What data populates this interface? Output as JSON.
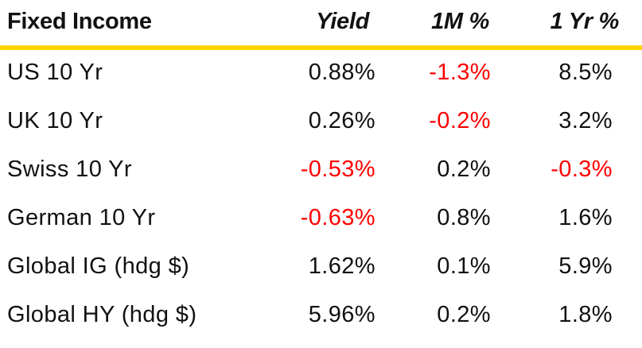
{
  "header": {
    "label": "Fixed Income",
    "col_yield": "Yield",
    "col_1m": "1M %",
    "col_1yr": "1 Yr %"
  },
  "colors": {
    "rule": "#FFD500",
    "negative": "#FF0000",
    "text": "#111111"
  },
  "rows": [
    {
      "name": "US 10 Yr",
      "yield": "0.88%",
      "m1": "-1.3%",
      "yr1": "8.5%"
    },
    {
      "name": "UK 10 Yr",
      "yield": "0.26%",
      "m1": "-0.2%",
      "yr1": "3.2%"
    },
    {
      "name": "Swiss 10 Yr",
      "yield": "-0.53%",
      "m1": "0.2%",
      "yr1": "-0.3%"
    },
    {
      "name": "German 10 Yr",
      "yield": "-0.63%",
      "m1": "0.8%",
      "yr1": "1.6%"
    },
    {
      "name": "Global IG (hdg $)",
      "yield": "1.62%",
      "m1": "0.1%",
      "yr1": "5.9%"
    },
    {
      "name": "Global HY (hdg $)",
      "yield": "5.96%",
      "m1": "0.2%",
      "yr1": "1.8%"
    }
  ]
}
